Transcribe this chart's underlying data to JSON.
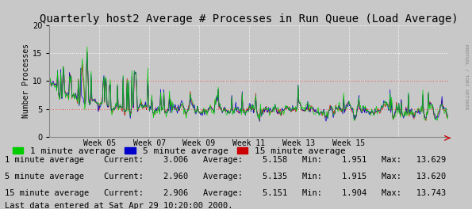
{
  "title": "Quarterly host2 Average # Processes in Run Queue (Load Average)",
  "ylabel": "Number Processes",
  "ylim": [
    0,
    20
  ],
  "yticks": [
    0,
    5,
    10,
    15,
    20
  ],
  "x_week_labels": [
    "Week 05",
    "Week 07",
    "Week 09",
    "Week 11",
    "Week 13",
    "Week 15"
  ],
  "bg_color": "#c8c8c8",
  "plot_bg_color": "#c8c8c8",
  "grid_color": "#ffffff",
  "line1_color": "#00cc00",
  "line2_color": "#0000cc",
  "line3_color": "#cc0000",
  "legend_items": [
    "1 minute average",
    "5 minute average",
    "15 minute average"
  ],
  "legend_colors": [
    "#00cc00",
    "#0000cc",
    "#cc0000"
  ],
  "stats": {
    "1min": {
      "label": "1 minute average",
      "current": 3.006,
      "average": 5.158,
      "min": 1.951,
      "max": 13.629
    },
    "5min": {
      "label": "5 minute average",
      "current": 2.96,
      "average": 5.135,
      "min": 1.915,
      "max": 13.62
    },
    "15min": {
      "label": "15 minute average",
      "current": 2.906,
      "average": 5.151,
      "min": 1.904,
      "max": 13.743
    }
  },
  "last_data": "Last data entered at Sat Apr 29 10:20:00 2000.",
  "watermark": "RRDTOOL / TOBI OETIKER",
  "n_points": 500,
  "seed": 42,
  "title_fontsize": 10,
  "axis_fontsize": 7,
  "legend_fontsize": 8,
  "stats_fontsize": 7.5
}
